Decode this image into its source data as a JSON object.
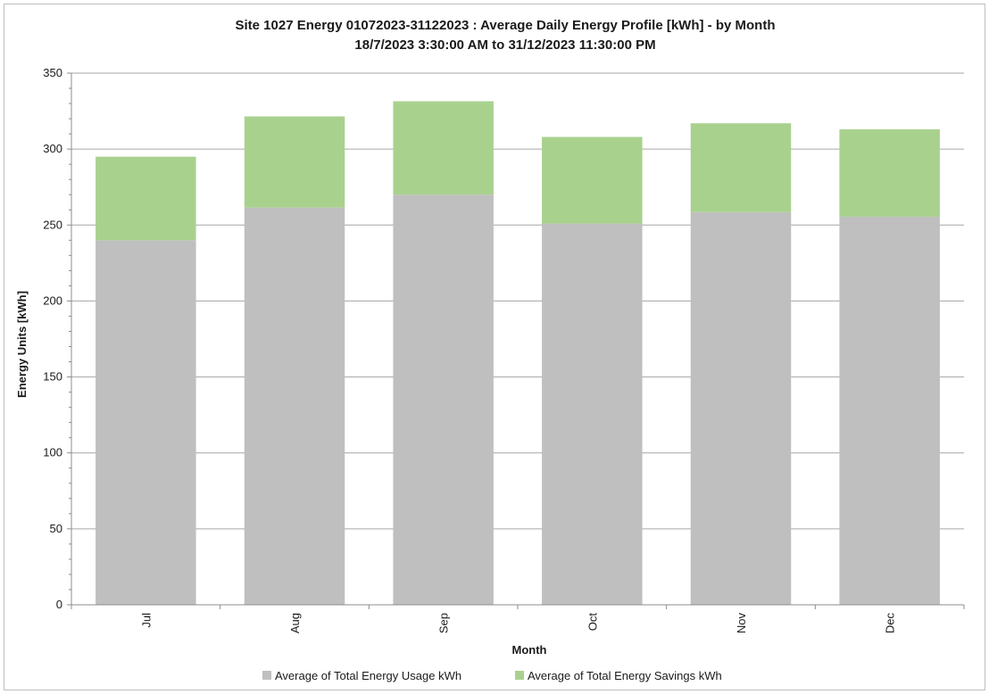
{
  "chart_data": {
    "type": "bar",
    "stacked": true,
    "title_line1": "Site 1027 Energy 01072023-31122023 : Average Daily Energy Profile [kWh] - by Month",
    "title_line2": "18/7/2023 3:30:00 AM to 31/12/2023 11:30:00 PM",
    "xlabel": "Month",
    "ylabel": "Energy Units [kWh]",
    "ylim": [
      0,
      350
    ],
    "yticks": [
      0,
      50,
      100,
      150,
      200,
      250,
      300,
      350
    ],
    "grid": true,
    "legend_position": "bottom",
    "categories": [
      "Jul",
      "Aug",
      "Sep",
      "Oct",
      "Nov",
      "Dec"
    ],
    "series": [
      {
        "name": "Average of Total Energy Usage kWh",
        "color": "#bfbfbf",
        "values": [
          240,
          261.5,
          270,
          251,
          258.5,
          255.5
        ]
      },
      {
        "name": "Average of Total Energy Savings kWh",
        "color": "#a9d18e",
        "values": [
          55,
          60,
          61.5,
          57,
          58.5,
          57.5
        ]
      }
    ]
  }
}
